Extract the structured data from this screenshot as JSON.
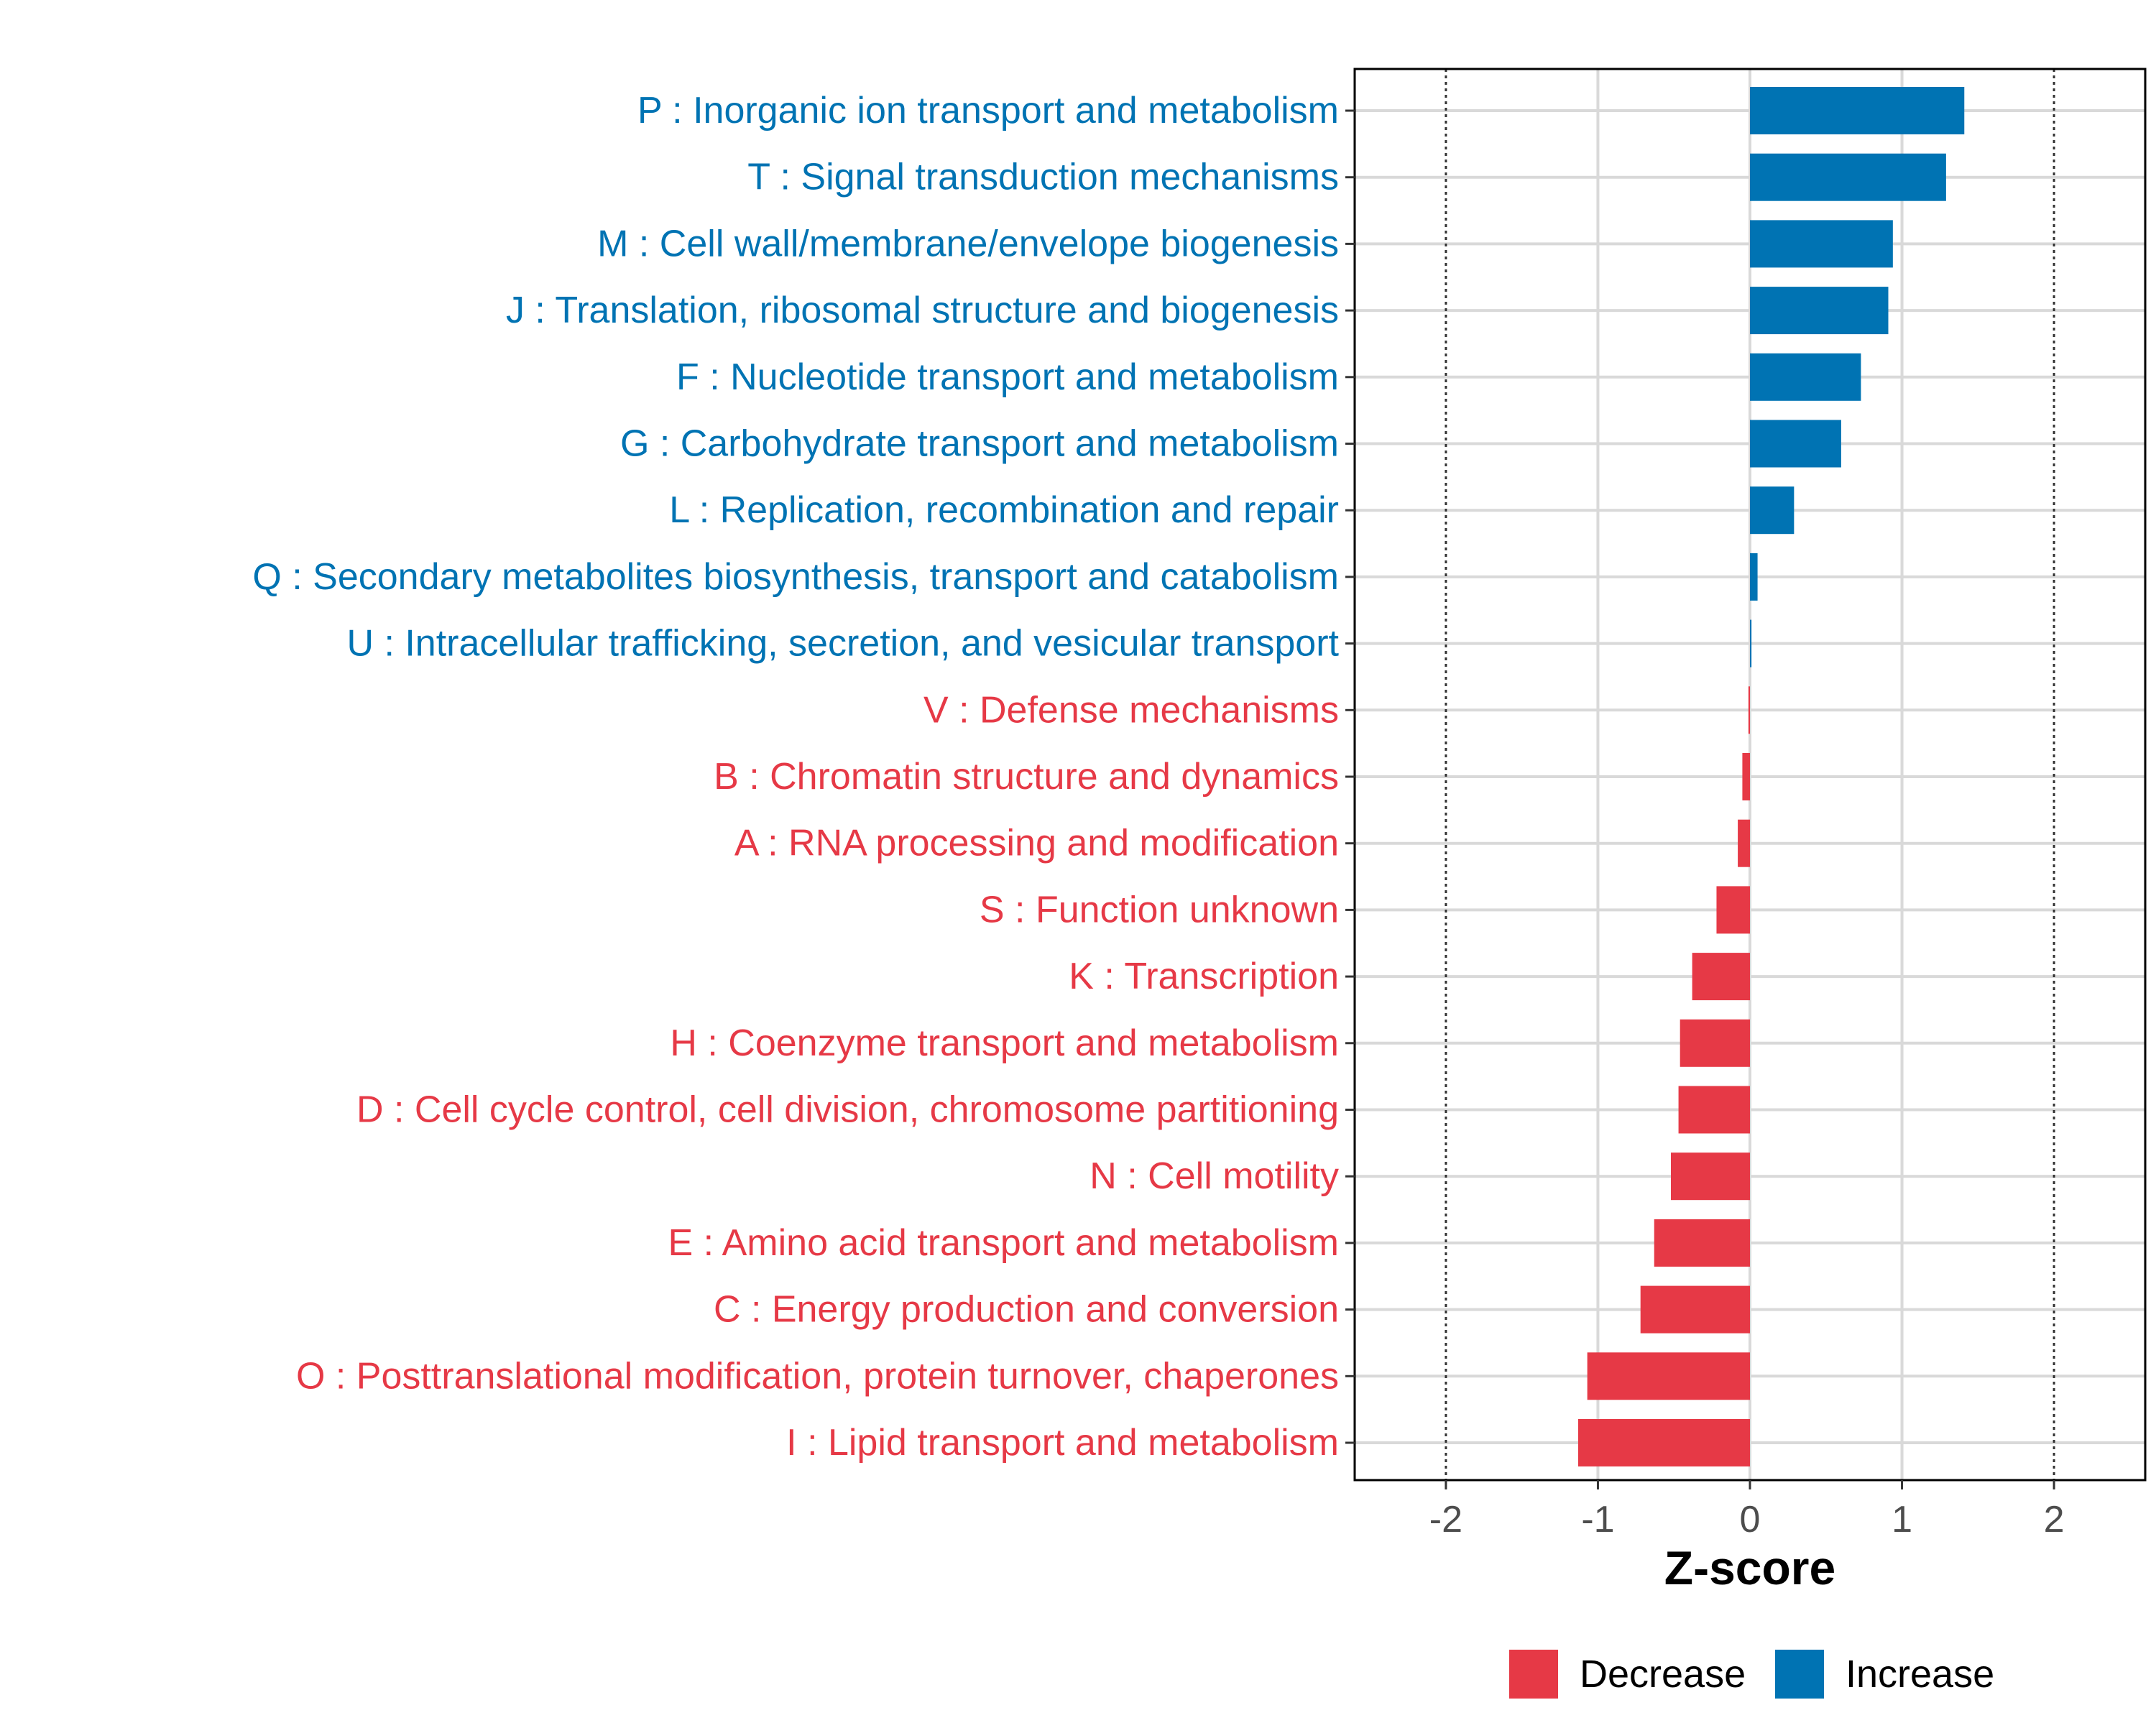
{
  "chart_data": {
    "type": "bar",
    "orientation": "horizontal",
    "title": "",
    "xlabel": "Z-score",
    "ylabel": "",
    "xlim": [
      -2.6,
      2.6
    ],
    "xticks": [
      -2,
      -1,
      0,
      1,
      2
    ],
    "xtick_labels": [
      "-2",
      "-1",
      "0",
      "1",
      "2"
    ],
    "threshold_lines": [
      -2,
      2
    ],
    "grid": true,
    "legend_position": "bottom-right",
    "colors": {
      "Increase": "#0073b3",
      "Decrease": "#e63946"
    },
    "legend": [
      {
        "label": "Decrease",
        "color": "#e63946"
      },
      {
        "label": "Increase",
        "color": "#0073b3"
      }
    ],
    "categories": [
      {
        "label": "P : Inorganic ion transport and metabolism",
        "value": 1.41,
        "direction": "Increase"
      },
      {
        "label": "T : Signal transduction mechanisms",
        "value": 1.29,
        "direction": "Increase"
      },
      {
        "label": "M : Cell wall/membrane/envelope biogenesis",
        "value": 0.94,
        "direction": "Increase"
      },
      {
        "label": "J : Translation, ribosomal structure and biogenesis",
        "value": 0.91,
        "direction": "Increase"
      },
      {
        "label": "F : Nucleotide transport and metabolism",
        "value": 0.73,
        "direction": "Increase"
      },
      {
        "label": "G : Carbohydrate transport and metabolism",
        "value": 0.6,
        "direction": "Increase"
      },
      {
        "label": "L : Replication, recombination and repair",
        "value": 0.29,
        "direction": "Increase"
      },
      {
        "label": "Q : Secondary metabolites biosynthesis, transport and catabolism",
        "value": 0.05,
        "direction": "Increase"
      },
      {
        "label": "U : Intracellular trafficking, secretion, and vesicular transport",
        "value": 0.01,
        "direction": "Increase"
      },
      {
        "label": "V : Defense mechanisms",
        "value": -0.01,
        "direction": "Decrease"
      },
      {
        "label": "B : Chromatin structure and dynamics",
        "value": -0.05,
        "direction": "Decrease"
      },
      {
        "label": "A : RNA processing and modification",
        "value": -0.08,
        "direction": "Decrease"
      },
      {
        "label": "S : Function unknown",
        "value": -0.22,
        "direction": "Decrease"
      },
      {
        "label": "K : Transcription",
        "value": -0.38,
        "direction": "Decrease"
      },
      {
        "label": "H : Coenzyme transport and metabolism",
        "value": -0.46,
        "direction": "Decrease"
      },
      {
        "label": "D : Cell cycle control, cell division, chromosome partitioning",
        "value": -0.47,
        "direction": "Decrease"
      },
      {
        "label": "N : Cell motility",
        "value": -0.52,
        "direction": "Decrease"
      },
      {
        "label": "E : Amino acid transport and metabolism",
        "value": -0.63,
        "direction": "Decrease"
      },
      {
        "label": "C : Energy production and conversion",
        "value": -0.72,
        "direction": "Decrease"
      },
      {
        "label": "O : Posttranslational modification, protein turnover, chaperones",
        "value": -1.07,
        "direction": "Decrease"
      },
      {
        "label": "I : Lipid transport and metabolism",
        "value": -1.13,
        "direction": "Decrease"
      }
    ]
  }
}
